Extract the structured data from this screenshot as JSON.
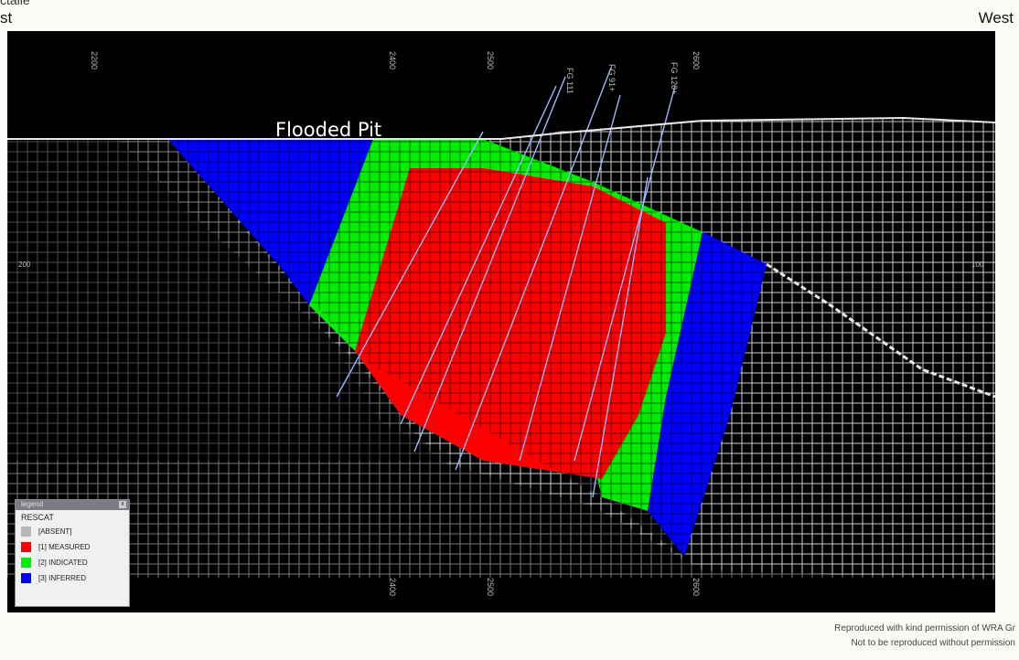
{
  "header": {
    "top_left_fragment": "ctalle",
    "left_label": "st",
    "right_label": "West"
  },
  "section": {
    "title": "Flooded Pit",
    "columns": [
      "2200",
      "2400",
      "2500",
      "2600"
    ],
    "hole_labels": [
      "FG 111",
      "FG 91+",
      "FG 120+"
    ],
    "side_markers": [
      "200",
      "100"
    ]
  },
  "legend": {
    "window_title": "legend",
    "close_glyph": "x",
    "field": "RESCAT",
    "items": [
      {
        "label": "[ABSENT]",
        "color": "#b8b8b8"
      },
      {
        "label": "[1] MEASURED",
        "color": "#ff0000"
      },
      {
        "label": "[2] INDICATED",
        "color": "#00ee00"
      },
      {
        "label": "[3] INFERRED",
        "color": "#0000ff"
      }
    ]
  },
  "credit": {
    "line1": "Reproduced with kind permission of WRA Gr",
    "line2": "Not to be reproduced without permission"
  },
  "colors": {
    "grid": "#d8d8d8",
    "measured": "#ff0000",
    "indicated": "#00ee00",
    "inferred": "#0000ff",
    "background": "#000000"
  }
}
